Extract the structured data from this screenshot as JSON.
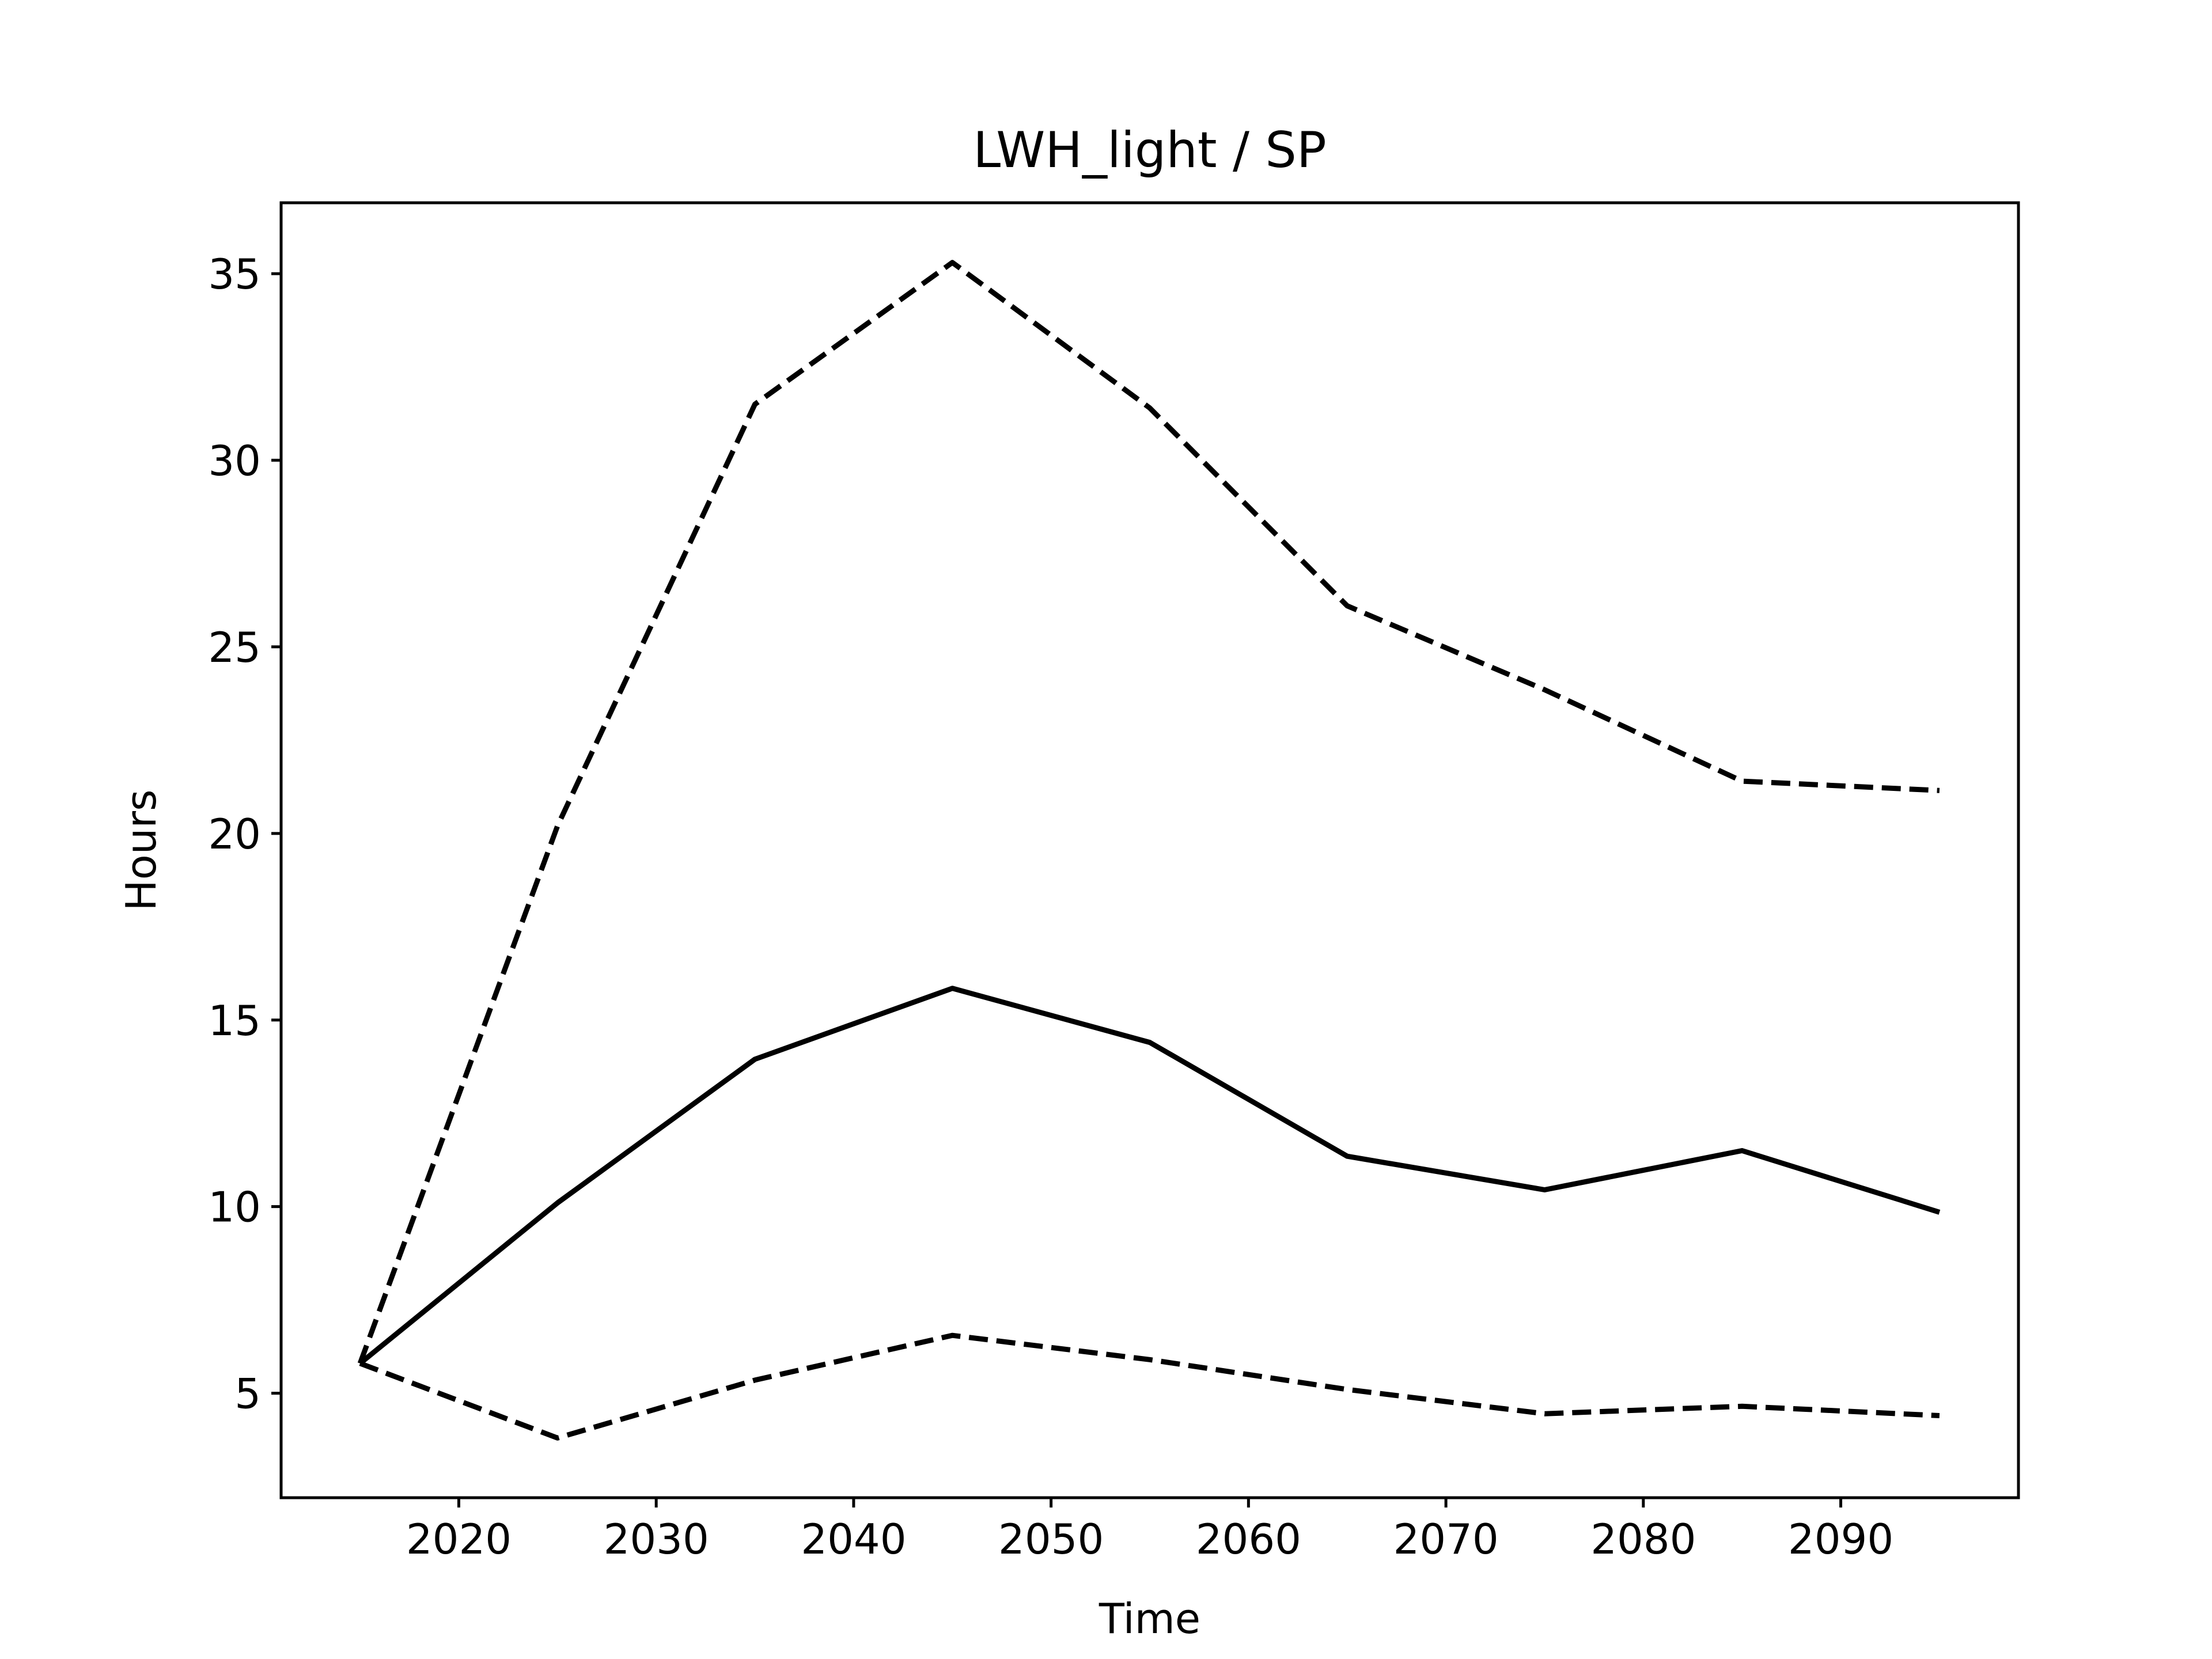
{
  "chart_data": {
    "type": "line",
    "title": "LWH_light / SP",
    "xlabel": "Time",
    "ylabel": "Hours",
    "x": [
      2015,
      2025,
      2035,
      2045,
      2055,
      2065,
      2075,
      2085,
      2095
    ],
    "xlim": [
      2011,
      2099
    ],
    "ylim": [
      2.2,
      36.9
    ],
    "xticks": [
      2020,
      2030,
      2040,
      2050,
      2060,
      2070,
      2080,
      2090
    ],
    "yticks": [
      5,
      10,
      15,
      20,
      25,
      30,
      35
    ],
    "grid": false,
    "legend": "none",
    "series": [
      {
        "style": "solid",
        "color": "#000000",
        "values": [
          5.8,
          10.1,
          13.95,
          15.85,
          14.4,
          11.35,
          10.45,
          11.5,
          9.85
        ]
      },
      {
        "style": "dashed",
        "color": "#000000",
        "values": [
          5.8,
          20.2,
          31.5,
          35.3,
          31.4,
          26.1,
          23.85,
          21.4,
          21.15
        ]
      },
      {
        "style": "dashed",
        "color": "#000000",
        "values": [
          5.8,
          3.8,
          5.35,
          6.55,
          5.9,
          5.1,
          4.45,
          4.65,
          4.4
        ]
      }
    ]
  }
}
